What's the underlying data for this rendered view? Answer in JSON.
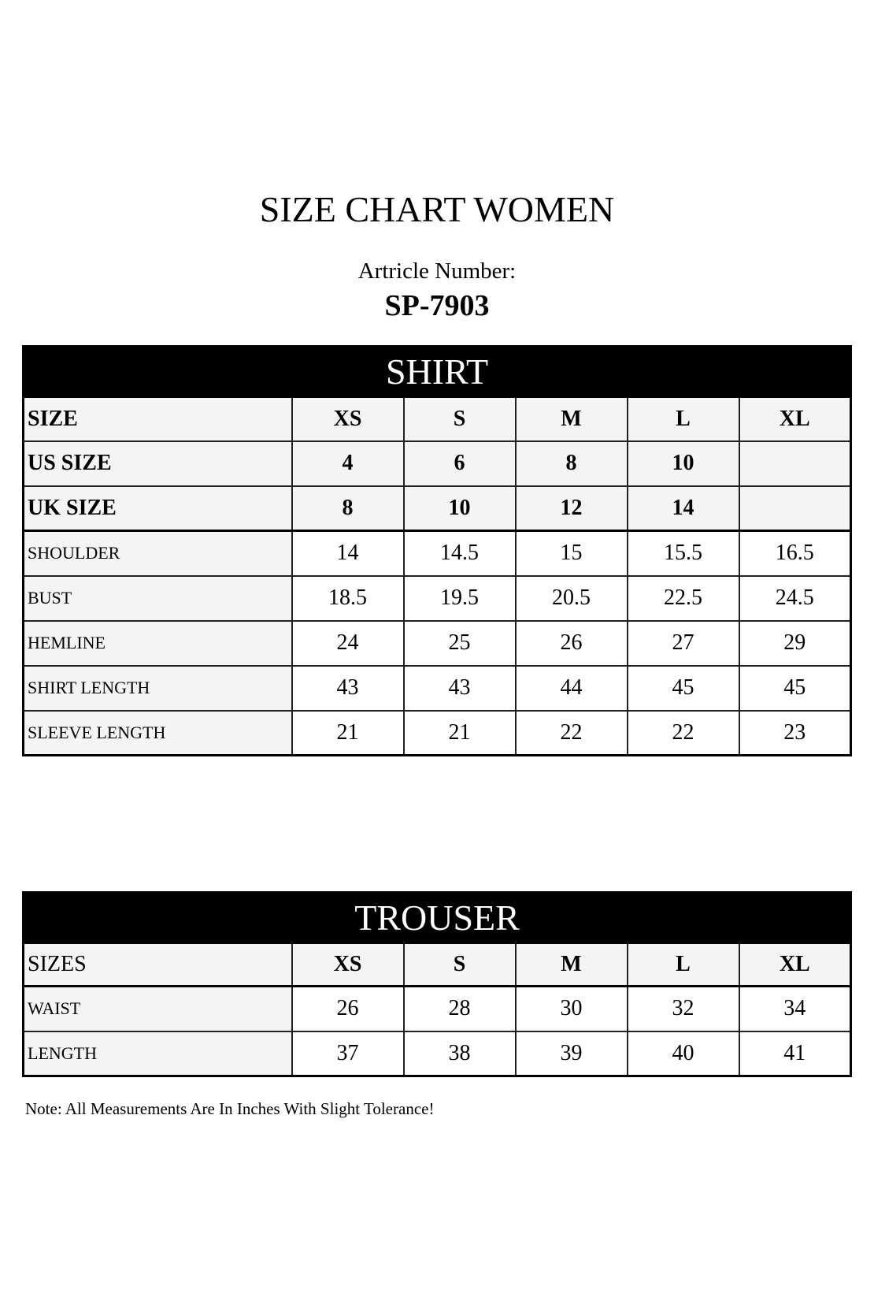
{
  "title": "SIZE CHART WOMEN",
  "article_label": "Artricle Number:",
  "article_number": "SP-7903",
  "shirt": {
    "heading": "SHIRT",
    "header_rows": [
      {
        "label": "SIZE",
        "values": [
          "XS",
          "S",
          "M",
          "L",
          "XL"
        ]
      },
      {
        "label": "US SIZE",
        "values": [
          "4",
          "6",
          "8",
          "10",
          ""
        ]
      },
      {
        "label": "UK SIZE",
        "values": [
          "8",
          "10",
          "12",
          "14",
          ""
        ]
      }
    ],
    "rows": [
      {
        "label": "SHOULDER",
        "values": [
          "14",
          "14.5",
          "15",
          "15.5",
          "16.5"
        ]
      },
      {
        "label": "BUST",
        "values": [
          "18.5",
          "19.5",
          "20.5",
          "22.5",
          "24.5"
        ]
      },
      {
        "label": "HEMLINE",
        "values": [
          "24",
          "25",
          "26",
          "27",
          "29"
        ]
      },
      {
        "label": "SHIRT LENGTH",
        "values": [
          "43",
          "43",
          "44",
          "45",
          "45"
        ]
      },
      {
        "label": "SLEEVE LENGTH",
        "values": [
          "21",
          "21",
          "22",
          "22",
          "23"
        ]
      }
    ]
  },
  "trouser": {
    "heading": "TROUSER",
    "header_rows": [
      {
        "label": "SIZES",
        "values": [
          "XS",
          "S",
          "M",
          "L",
          "XL"
        ]
      }
    ],
    "rows": [
      {
        "label": "WAIST",
        "values": [
          "26",
          "28",
          "30",
          "32",
          "34"
        ]
      },
      {
        "label": "LENGTH",
        "values": [
          "37",
          "38",
          "39",
          "40",
          "41"
        ]
      }
    ]
  },
  "note": "Note: All Measurements Are In Inches With Slight Tolerance!"
}
